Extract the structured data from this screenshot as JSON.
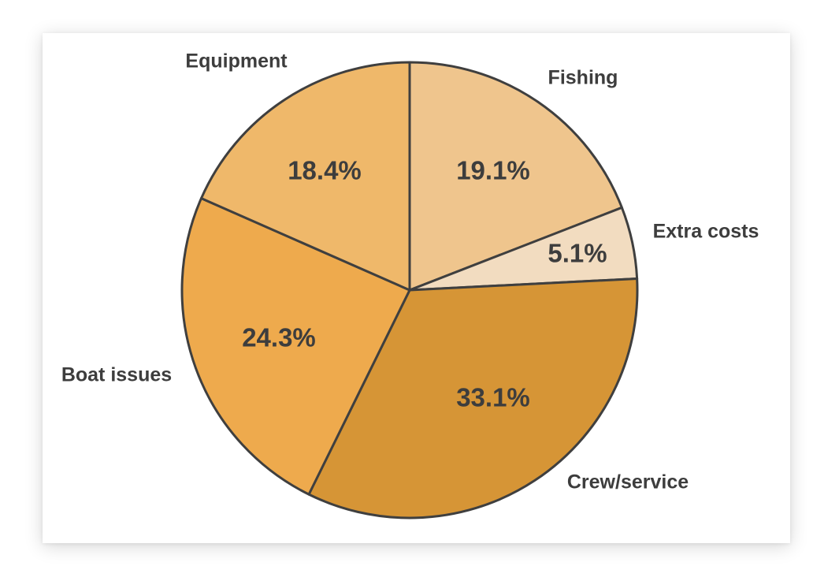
{
  "chart_data": {
    "type": "pie",
    "title": "",
    "categories": [
      "Fishing",
      "Extra costs",
      "Crew/service",
      "Boat issues",
      "Equipment"
    ],
    "values": [
      19.1,
      5.1,
      33.1,
      24.3,
      18.4
    ],
    "labels": [
      "19.1%",
      "5.1%",
      "33.1%",
      "24.3%",
      "18.4%"
    ],
    "colors": [
      "#efc58d",
      "#f2dcc0",
      "#d69536",
      "#eeaa4d",
      "#efb86a"
    ],
    "start_angle_deg": 0,
    "direction": "clockwise",
    "legend": "none"
  }
}
